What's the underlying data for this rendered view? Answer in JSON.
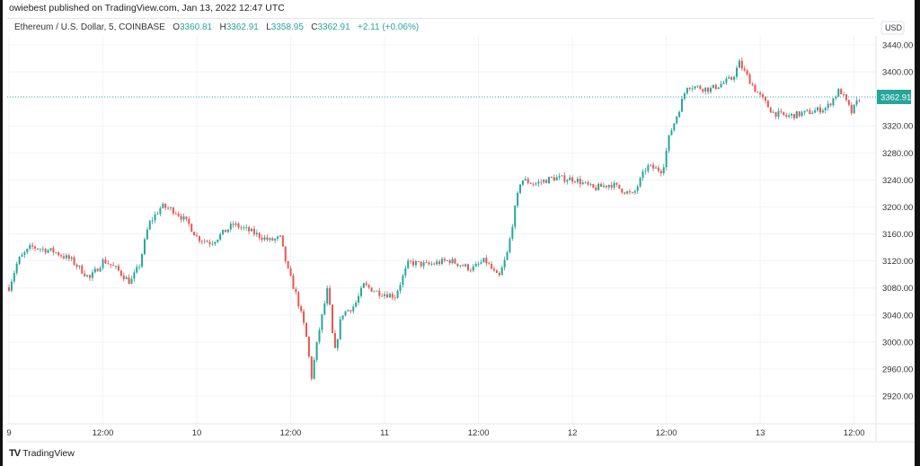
{
  "header": {
    "published": "owiebest published on TradingView.com, Jan 13, 2022 12:47 UTC",
    "symbol": "Ethereum / U.S. Dollar, 5, COINBASE",
    "o_label": "O",
    "o": "3360.81",
    "h_label": "H",
    "h": "3362.91",
    "l_label": "L",
    "l": "3358.95",
    "c_label": "C",
    "c": "3362.91",
    "change": "+2.11 (+0.06%)"
  },
  "footer": {
    "logo_text": "TradingView"
  },
  "colors": {
    "up": "#26a69a",
    "down": "#ef5350",
    "grid": "#f0f3fa",
    "price_label": "#26a69a"
  },
  "chart_data": {
    "type": "candlestick",
    "title": "Ethereum / U.S. Dollar, 5, COINBASE",
    "currency": "USD",
    "last_price": "3362.91",
    "ylim": [
      2890,
      3460
    ],
    "y_ticks": [
      "3440.00",
      "3400.00",
      "3320.00",
      "3280.00",
      "3240.00",
      "3200.00",
      "3160.00",
      "3120.00",
      "3080.00",
      "3040.00",
      "3000.00",
      "2960.00",
      "2920.00"
    ],
    "x_ticks": [
      "9",
      "12:00",
      "10",
      "12:00",
      "11",
      "12:00",
      "12",
      "12:00",
      "13",
      "12:00"
    ],
    "grid": true,
    "price_path": [
      [
        "2022-01-09T00:00",
        3081
      ],
      [
        "2022-01-09T01:10",
        3121
      ],
      [
        "2022-01-09T02:50",
        3141
      ],
      [
        "2022-01-09T05:45",
        3134
      ],
      [
        "2022-01-09T08:00",
        3121
      ],
      [
        "2022-01-09T10:20",
        3094
      ],
      [
        "2022-01-09T12:05",
        3121
      ],
      [
        "2022-01-09T13:45",
        3108
      ],
      [
        "2022-01-09T15:30",
        3088
      ],
      [
        "2022-01-09T16:40",
        3114
      ],
      [
        "2022-01-09T17:50",
        3174
      ],
      [
        "2022-01-09T19:30",
        3201
      ],
      [
        "2022-01-09T21:15",
        3194
      ],
      [
        "2022-01-09T23:00",
        3174
      ],
      [
        "2022-01-10T00:05",
        3154
      ],
      [
        "2022-01-10T01:50",
        3147
      ],
      [
        "2022-01-10T04:40",
        3174
      ],
      [
        "2022-01-10T07:00",
        3163
      ],
      [
        "2022-01-10T09:20",
        3150
      ],
      [
        "2022-01-10T10:40",
        3154
      ],
      [
        "2022-01-10T11:35",
        3108
      ],
      [
        "2022-01-10T12:45",
        3068
      ],
      [
        "2022-01-10T13:55",
        3014
      ],
      [
        "2022-01-10T14:40",
        2948
      ],
      [
        "2022-01-10T15:35",
        3014
      ],
      [
        "2022-01-10T16:45",
        3081
      ],
      [
        "2022-01-10T17:35",
        2981
      ],
      [
        "2022-01-10T18:30",
        3041
      ],
      [
        "2022-01-10T20:10",
        3054
      ],
      [
        "2022-01-10T21:20",
        3084
      ],
      [
        "2022-01-10T23:05",
        3074
      ],
      [
        "2022-01-11T01:20",
        3068
      ],
      [
        "2022-01-11T03:05",
        3118
      ],
      [
        "2022-01-11T05:25",
        3114
      ],
      [
        "2022-01-11T08:15",
        3121
      ],
      [
        "2022-01-11T11:10",
        3108
      ],
      [
        "2022-01-11T12:50",
        3121
      ],
      [
        "2022-01-11T14:35",
        3094
      ],
      [
        "2022-01-11T15:45",
        3134
      ],
      [
        "2022-01-11T16:30",
        3187
      ],
      [
        "2022-01-11T17:25",
        3241
      ],
      [
        "2022-01-11T19:10",
        3234
      ],
      [
        "2022-01-11T21:30",
        3243
      ],
      [
        "2022-01-12T00:20",
        3241
      ],
      [
        "2022-01-12T02:40",
        3227
      ],
      [
        "2022-01-12T04:55",
        3234
      ],
      [
        "2022-01-12T07:45",
        3217
      ],
      [
        "2022-01-12T09:30",
        3260
      ],
      [
        "2022-01-12T11:30",
        3254
      ],
      [
        "2022-01-12T12:25",
        3307
      ],
      [
        "2022-01-12T13:30",
        3340
      ],
      [
        "2022-01-12T14:40",
        3380
      ],
      [
        "2022-01-12T17:35",
        3374
      ],
      [
        "2022-01-12T20:25",
        3390
      ],
      [
        "2022-01-12T21:20",
        3413
      ],
      [
        "2022-01-12T23:20",
        3374
      ],
      [
        "2022-01-13T01:35",
        3340
      ],
      [
        "2022-01-13T03:20",
        3334
      ],
      [
        "2022-01-13T06:10",
        3340
      ],
      [
        "2022-01-13T08:30",
        3347
      ],
      [
        "2022-01-13T10:10",
        3374
      ],
      [
        "2022-01-13T11:40",
        3340
      ],
      [
        "2022-01-13T12:45",
        3362.91
      ]
    ]
  }
}
